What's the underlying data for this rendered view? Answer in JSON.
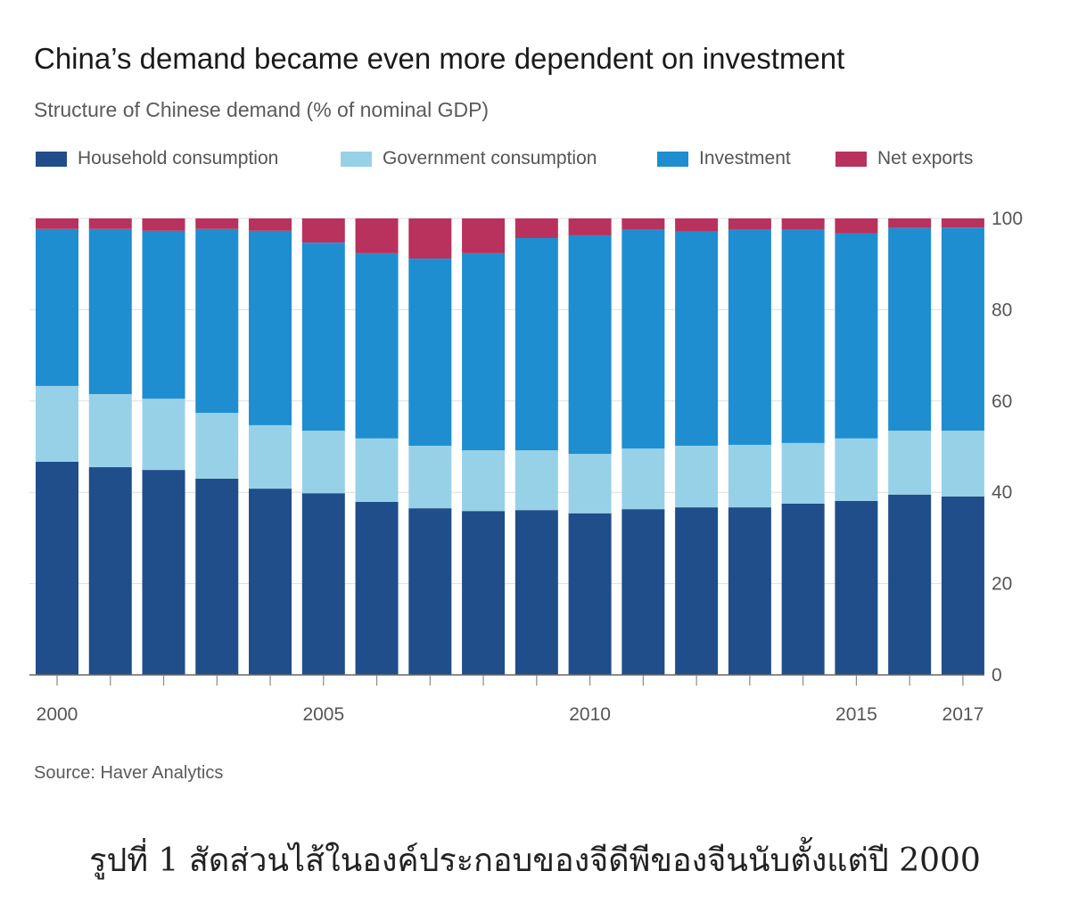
{
  "chart_data": {
    "type": "bar",
    "stacked": true,
    "title": "China’s demand became even more dependent on investment",
    "subtitle": "Structure of Chinese demand (% of nominal GDP)",
    "x": [
      2000,
      2001,
      2002,
      2003,
      2004,
      2005,
      2006,
      2007,
      2008,
      2009,
      2010,
      2011,
      2012,
      2013,
      2014,
      2015,
      2016,
      2017
    ],
    "x_tick_labels": [
      "2000",
      "2005",
      "2010",
      "2015",
      "2017"
    ],
    "y_ticks": [
      0,
      20,
      40,
      60,
      80,
      100
    ],
    "ylim": [
      0,
      100
    ],
    "y_axis_position": "right",
    "grid": true,
    "legend_position": "top-left",
    "series": [
      {
        "name": "Household consumption",
        "color": "#1f4e8a",
        "values": [
          46.7,
          45.5,
          44.9,
          43.0,
          40.8,
          39.8,
          37.9,
          36.5,
          35.9,
          36.1,
          35.4,
          36.3,
          36.7,
          36.7,
          37.5,
          38.1,
          39.5,
          39.1
        ]
      },
      {
        "name": "Government consumption",
        "color": "#97d1e8",
        "values": [
          16.6,
          16.0,
          15.6,
          14.4,
          13.9,
          13.7,
          13.9,
          13.7,
          13.3,
          13.1,
          13.0,
          13.3,
          13.5,
          13.7,
          13.3,
          13.7,
          14.0,
          14.4
        ]
      },
      {
        "name": "Investment",
        "color": "#1e8ed0",
        "values": [
          34.4,
          36.2,
          36.8,
          40.3,
          42.6,
          41.2,
          40.6,
          41.0,
          43.2,
          46.5,
          47.9,
          47.9,
          46.9,
          47.1,
          46.7,
          44.9,
          44.4,
          44.5
        ]
      },
      {
        "name": "Net exports",
        "color": "#b8325d",
        "values": [
          2.3,
          2.3,
          2.7,
          2.3,
          2.7,
          5.3,
          7.6,
          8.8,
          7.6,
          4.3,
          3.7,
          2.5,
          2.9,
          2.5,
          2.5,
          3.3,
          2.1,
          2.0
        ]
      }
    ]
  },
  "source": "Source: Haver Analytics",
  "caption": "รูปที่ 1 สัดส่วนไส้ในองค์ประกอบของจีดีพีของจีนนับตั้งแต่ปี 2000"
}
